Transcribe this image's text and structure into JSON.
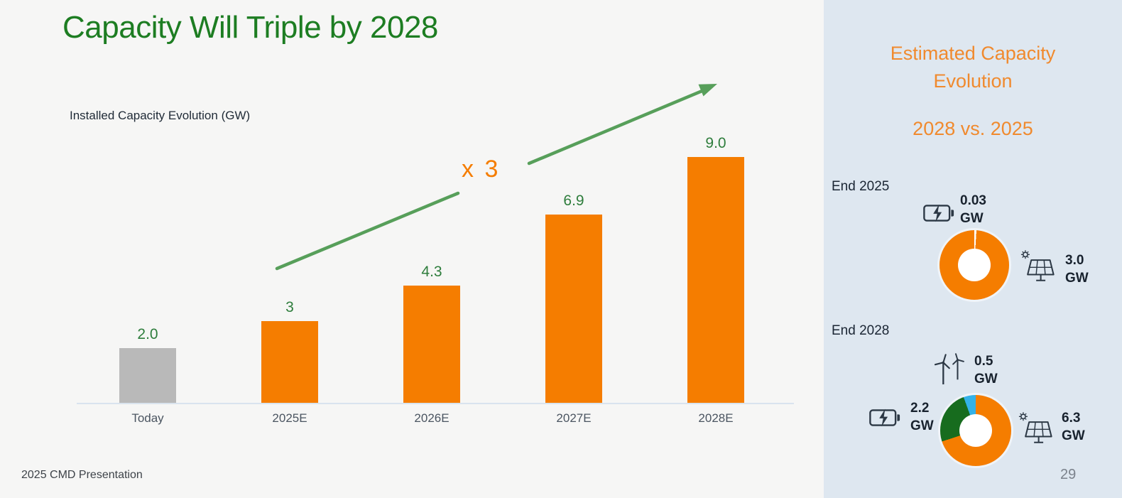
{
  "slide": {
    "title": "Capacity Will Triple by 2028",
    "footer": "2025 CMD Presentation",
    "page_number": "29"
  },
  "chart_data": [
    {
      "type": "bar",
      "title": "Installed Capacity Evolution (GW)",
      "categories": [
        "Today",
        "2025E",
        "2026E",
        "2027E",
        "2028E"
      ],
      "values": [
        2.0,
        3,
        4.3,
        6.9,
        9.0
      ],
      "labels": [
        "2.0",
        "3",
        "4.3",
        "6.9",
        "9.0"
      ],
      "bar_colors": [
        "#b9b9b9",
        "#f57d00",
        "#f57d00",
        "#f57d00",
        "#f57d00"
      ],
      "annotation": "x 3",
      "xlabel": "",
      "ylabel": "GW",
      "ylim": [
        0,
        9.6
      ],
      "grid": false
    },
    {
      "type": "pie",
      "title": "End 2025",
      "segments": [
        {
          "label": "Battery storage",
          "value": 0.03,
          "display": "0.03 GW",
          "color": "#ffffff"
        },
        {
          "label": "Solar",
          "value": 3.0,
          "display": "3.0 GW",
          "color": "#f57d00"
        }
      ]
    },
    {
      "type": "pie",
      "title": "End 2028",
      "segments": [
        {
          "label": "Solar",
          "value": 6.3,
          "display": "6.3 GW",
          "color": "#f57d00"
        },
        {
          "label": "Battery storage",
          "value": 2.2,
          "display": "2.2 GW",
          "color": "#176c1e"
        },
        {
          "label": "Wind",
          "value": 0.5,
          "display": "0.5 GW",
          "color": "#33b2e8"
        }
      ]
    }
  ],
  "sidebar": {
    "title": "Estimated Capacity Evolution",
    "subtitle": "2028 vs. 2025",
    "sections": {
      "end2025": {
        "battery": {
          "value": "0.03",
          "unit": "GW"
        },
        "solar": {
          "value": "3.0",
          "unit": "GW"
        }
      },
      "end2028": {
        "wind": {
          "value": "0.5",
          "unit": "GW"
        },
        "battery": {
          "value": "2.2",
          "unit": "GW"
        },
        "solar": {
          "value": "6.3",
          "unit": "GW"
        }
      }
    }
  },
  "colors": {
    "main_bg": "#f6f6f5",
    "sidebar_bg": "#dee7f0",
    "title_green": "#1d7d22",
    "accent_orange": "#f57d00",
    "heading_orange": "#f08a2e",
    "arrow_green": "#579f5a",
    "bar_gray": "#b9b9b9",
    "donut_green": "#176c1e",
    "donut_blue": "#33b2e8",
    "icon_ink": "#2c3845"
  }
}
